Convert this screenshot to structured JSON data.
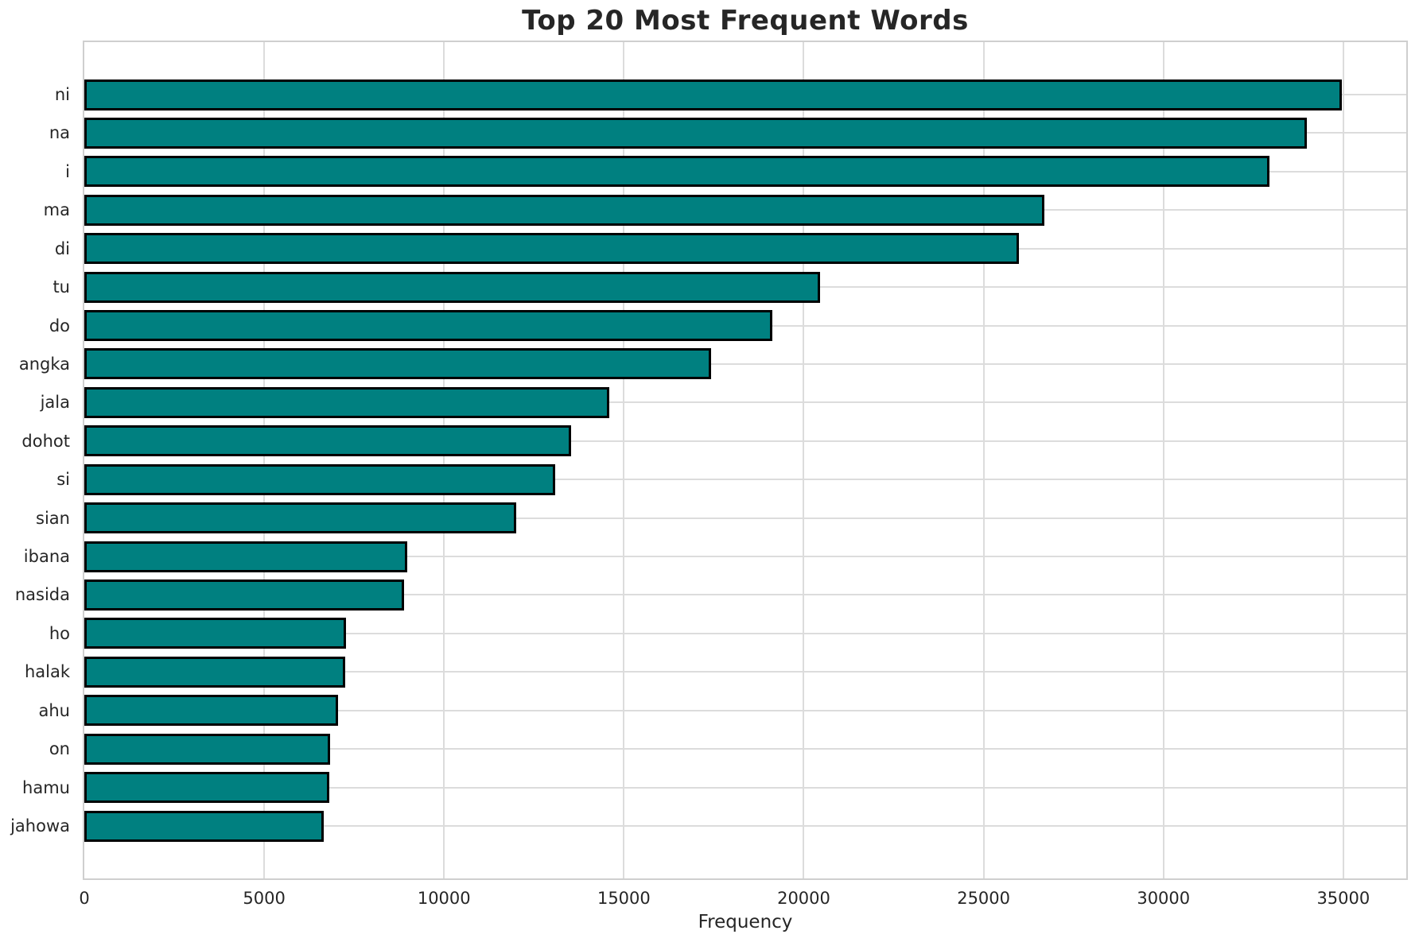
{
  "chart_data": {
    "type": "bar",
    "orientation": "horizontal",
    "title": "Top 20 Most Frequent Words",
    "xlabel": "Frequency",
    "ylabel": "",
    "categories": [
      "ni",
      "na",
      "i",
      "ma",
      "di",
      "tu",
      "do",
      "angka",
      "jala",
      "dohot",
      "si",
      "sian",
      "ibana",
      "nasida",
      "ho",
      "halak",
      "ahu",
      "on",
      "hamu",
      "jahowa"
    ],
    "values": [
      34950,
      33980,
      32940,
      26680,
      25980,
      20450,
      19130,
      17430,
      14600,
      13530,
      13080,
      12010,
      8970,
      8900,
      7280,
      7250,
      7050,
      6830,
      6820,
      6650
    ],
    "xlim": [
      0,
      36750
    ],
    "xticks": [
      0,
      5000,
      10000,
      15000,
      20000,
      25000,
      30000,
      35000
    ],
    "grid": true,
    "legend": false,
    "bar_color": "#008080",
    "bar_edge_color": "#000000",
    "gridline_color": "#dcdcdc",
    "spine_color": "#cfcfcf",
    "text_color": "#262626",
    "background_color": "#ffffff"
  }
}
